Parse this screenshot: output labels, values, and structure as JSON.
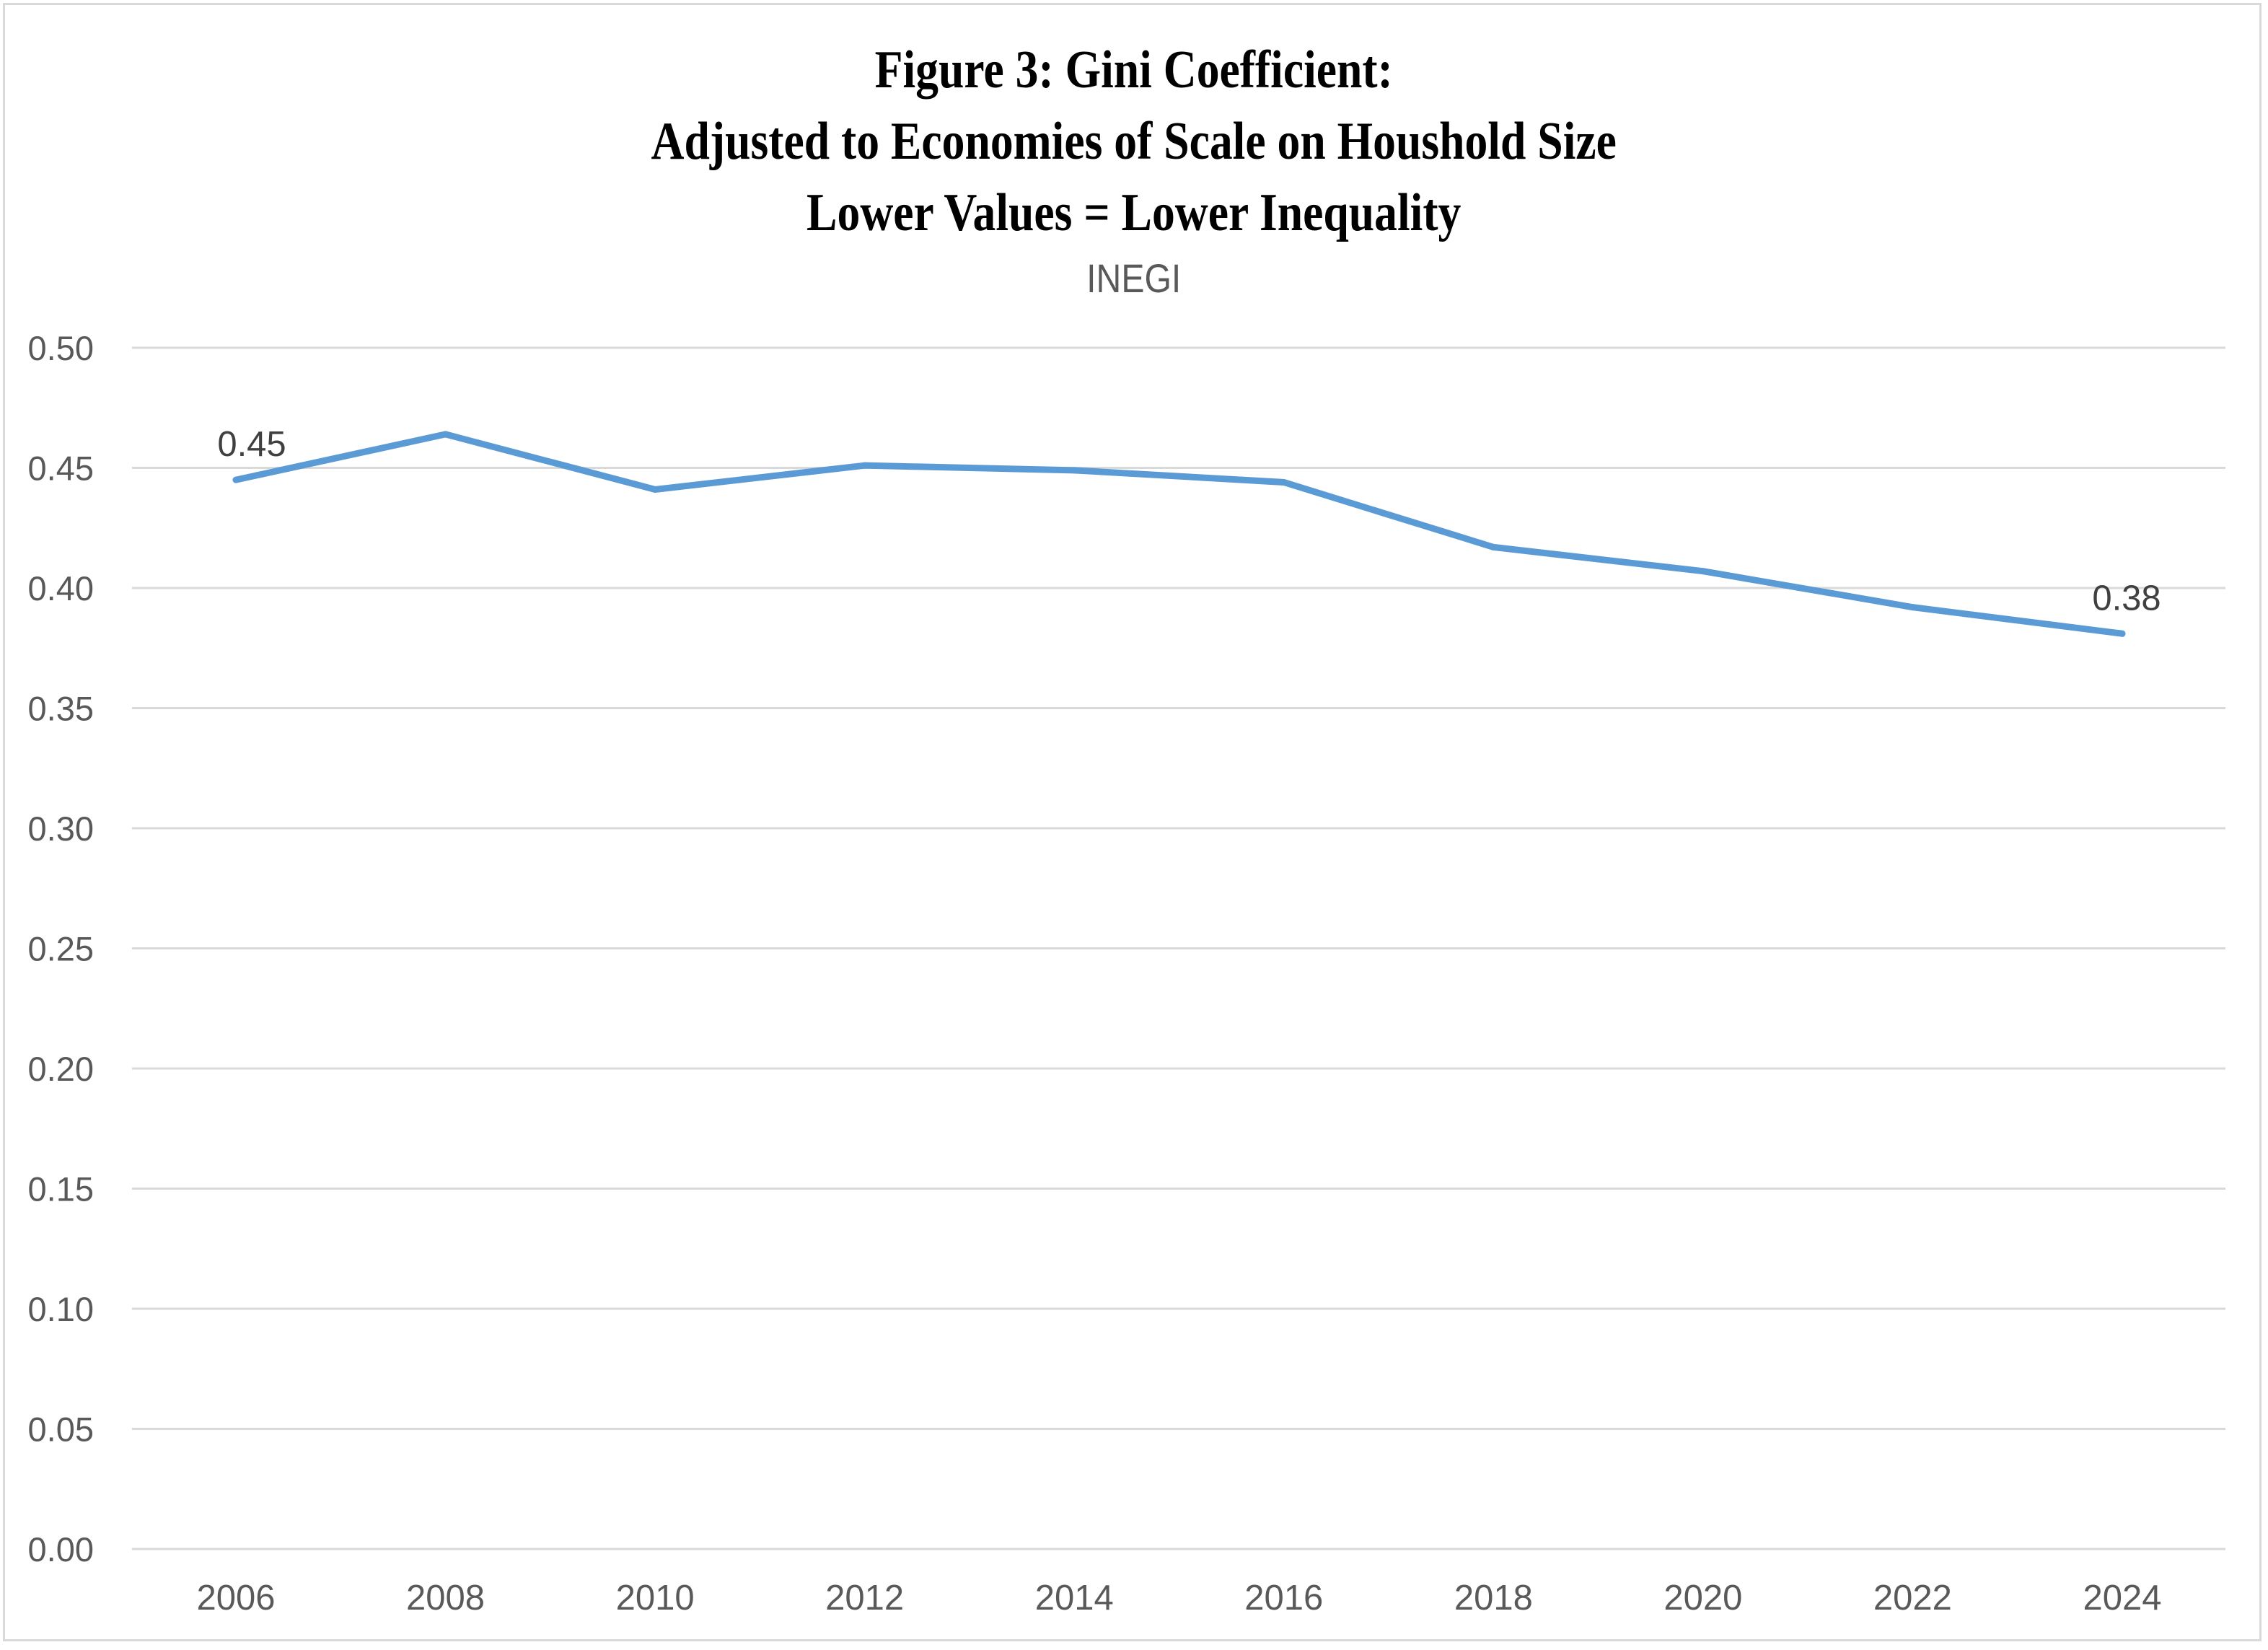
{
  "chart_data": {
    "type": "line",
    "title": [
      "Figure 3: Gini Coefficient:",
      "Adjusted to Economies of Scale on Houshold Size",
      "Lower Values = Lower Inequality"
    ],
    "subtitle": "INEGI",
    "xlabel": "",
    "ylabel": "",
    "categories": [
      "2006",
      "2008",
      "2010",
      "2012",
      "2014",
      "2016",
      "2018",
      "2020",
      "2022",
      "2024"
    ],
    "series": [
      {
        "name": "Gini Coefficient",
        "values": [
          0.445,
          0.464,
          0.441,
          0.451,
          0.449,
          0.444,
          0.417,
          0.407,
          0.392,
          0.381
        ],
        "color": "#5B9BD5"
      }
    ],
    "data_labels": [
      {
        "index": 0,
        "text": "0.45"
      },
      {
        "index": 9,
        "text": "0.38"
      }
    ],
    "yticks": [
      "0.00",
      "0.05",
      "0.10",
      "0.15",
      "0.20",
      "0.25",
      "0.30",
      "0.35",
      "0.40",
      "0.45",
      "0.50"
    ],
    "ylim": [
      0,
      0.5
    ],
    "ystep": 0.05,
    "grid": true,
    "legend": "none"
  },
  "colors": {
    "text": "#595959",
    "data_label": "#404040",
    "grid": "#d9d9d9",
    "line": "#5B9BD5"
  }
}
